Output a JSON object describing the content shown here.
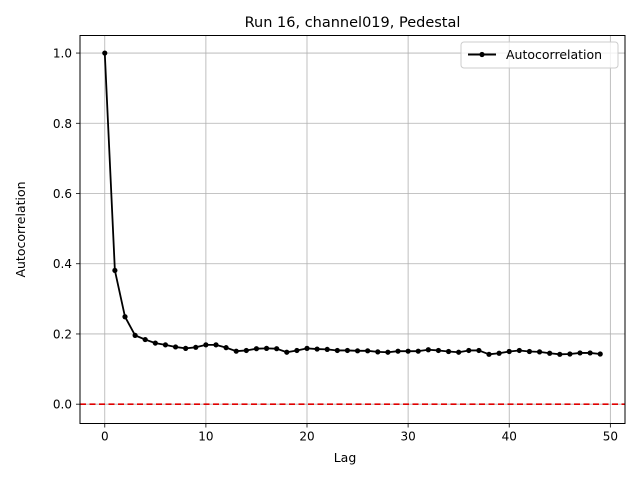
{
  "colors": {
    "series": "#000000",
    "reference_line": "#e00000",
    "grid": "#b0b0b0",
    "axes": "#000000"
  },
  "chart_data": {
    "type": "line",
    "title": "Run 16, channel019, Pedestal",
    "xlabel": "Lag",
    "ylabel": "Autocorrelation",
    "xlim": [
      -2.45,
      51.45
    ],
    "ylim": [
      -0.055,
      1.05
    ],
    "xticks": [
      0,
      10,
      20,
      30,
      40,
      50
    ],
    "yticks": [
      0.0,
      0.2,
      0.4,
      0.6,
      0.8,
      1.0
    ],
    "ytick_labels": [
      "0.0",
      "0.2",
      "0.4",
      "0.6",
      "0.8",
      "1.0"
    ],
    "grid": true,
    "legend": {
      "position": "top-right",
      "entries": [
        "Autocorrelation"
      ]
    },
    "reference_line": {
      "y": 0.0,
      "style": "dashed"
    },
    "series": [
      {
        "name": "Autocorrelation",
        "marker": "dot",
        "x": [
          0,
          1,
          2,
          3,
          4,
          5,
          6,
          7,
          8,
          9,
          10,
          11,
          12,
          13,
          14,
          15,
          16,
          17,
          18,
          19,
          20,
          21,
          22,
          23,
          24,
          25,
          26,
          27,
          28,
          29,
          30,
          31,
          32,
          33,
          34,
          35,
          36,
          37,
          38,
          39,
          40,
          41,
          42,
          43,
          44,
          45,
          46,
          47,
          48,
          49
        ],
        "y": [
          1.0,
          0.381,
          0.249,
          0.196,
          0.184,
          0.174,
          0.169,
          0.163,
          0.159,
          0.162,
          0.169,
          0.169,
          0.161,
          0.151,
          0.153,
          0.158,
          0.159,
          0.158,
          0.148,
          0.153,
          0.159,
          0.157,
          0.156,
          0.153,
          0.153,
          0.152,
          0.152,
          0.149,
          0.148,
          0.151,
          0.151,
          0.151,
          0.155,
          0.153,
          0.15,
          0.148,
          0.153,
          0.153,
          0.142,
          0.145,
          0.15,
          0.153,
          0.15,
          0.149,
          0.145,
          0.142,
          0.143,
          0.146,
          0.146,
          0.143
        ]
      }
    ]
  }
}
